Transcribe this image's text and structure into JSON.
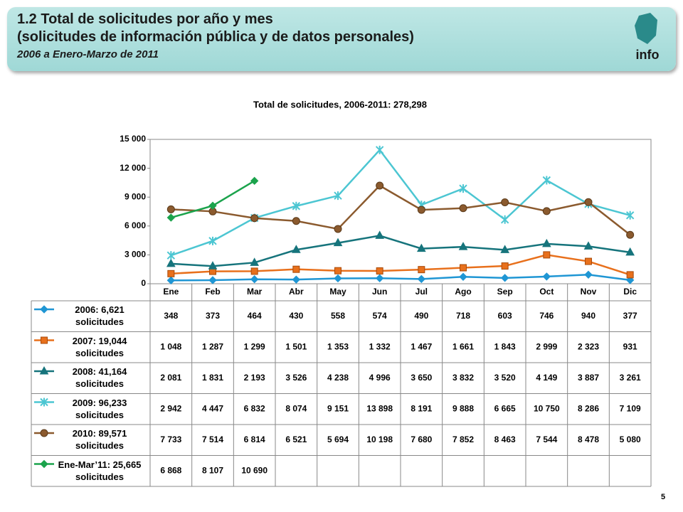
{
  "header": {
    "title": "1.2 Total de solicitudes por año y mes",
    "subtitle": "(solicitudes de información pública y de datos personales)",
    "period": "2006 a Enero-Marzo de 2011",
    "logo": "info",
    "page": "5"
  },
  "chart_data": {
    "type": "line",
    "title": "Total de solicitudes, 2006-2011: 278,298",
    "categories": [
      "Ene",
      "Feb",
      "Mar",
      "Abr",
      "May",
      "Jun",
      "Jul",
      "Ago",
      "Sep",
      "Oct",
      "Nov",
      "Dic"
    ],
    "ylim": [
      0,
      15000
    ],
    "yticks": [
      0,
      {
        "value": 3000,
        "label": "3 000"
      },
      {
        "value": 6000,
        "label": "6 000"
      },
      {
        "value": 9000,
        "label": "9 000"
      },
      {
        "value": 12000,
        "label": "12 000"
      },
      {
        "value": 15000,
        "label": "15 000"
      }
    ],
    "grid": false,
    "series": [
      {
        "name": "2006: 6,621 solicitudes",
        "color": "#1f96d4",
        "marker": "diamond",
        "values": [
          348,
          373,
          464,
          430,
          558,
          574,
          490,
          718,
          603,
          746,
          940,
          377
        ]
      },
      {
        "name": "2007: 19,044 solicitudes",
        "color": "#e8701c",
        "marker": "square",
        "values": [
          1048,
          1287,
          1299,
          1501,
          1353,
          1332,
          1467,
          1661,
          1843,
          2999,
          2323,
          931
        ],
        "value_labels": [
          "1 048",
          "1 287",
          "1 299",
          "1 501",
          "1 353",
          "1 332",
          "1 467",
          "1 661",
          "1 843",
          "2 999",
          "2 323",
          "931"
        ]
      },
      {
        "name": "2008: 41,164 solicitudes",
        "color": "#16747c",
        "marker": "triangle",
        "values": [
          2081,
          1831,
          2193,
          3526,
          4238,
          4996,
          3650,
          3832,
          3520,
          4149,
          3887,
          3261
        ],
        "value_labels": [
          "2 081",
          "1 831",
          "2 193",
          "3 526",
          "4 238",
          "4 996",
          "3 650",
          "3 832",
          "3 520",
          "4 149",
          "3 887",
          "3 261"
        ]
      },
      {
        "name": "2009: 96,233 solicitudes",
        "color": "#4cc6d2",
        "marker": "star",
        "values": [
          2942,
          4447,
          6832,
          8074,
          9151,
          13898,
          8191,
          9888,
          6665,
          10750,
          8286,
          7109
        ],
        "value_labels": [
          "2 942",
          "4 447",
          "6 832",
          "8 074",
          "9 151",
          "13 898",
          "8 191",
          "9 888",
          "6 665",
          "10 750",
          "8 286",
          "7 109"
        ]
      },
      {
        "name": "2010: 89,571 solicitudes",
        "color": "#8b5a2e",
        "marker": "circle",
        "values": [
          7733,
          7514,
          6814,
          6521,
          5694,
          10198,
          7680,
          7852,
          8463,
          7544,
          8478,
          5080
        ],
        "value_labels": [
          "7 733",
          "7 514",
          "6 814",
          "6 521",
          "5 694",
          "10 198",
          "7 680",
          "7 852",
          "8 463",
          "7 544",
          "8 478",
          "5 080"
        ]
      },
      {
        "name": "Ene-Mar’11: 25,665 solicitudes",
        "color": "#1ba34c",
        "marker": "diamond",
        "values": [
          6868,
          8107,
          10690,
          null,
          null,
          null,
          null,
          null,
          null,
          null,
          null,
          null
        ],
        "value_labels": [
          "6 868",
          "8 107",
          "10 690",
          null,
          null,
          null,
          null,
          null,
          null,
          null,
          null,
          null
        ]
      }
    ]
  }
}
